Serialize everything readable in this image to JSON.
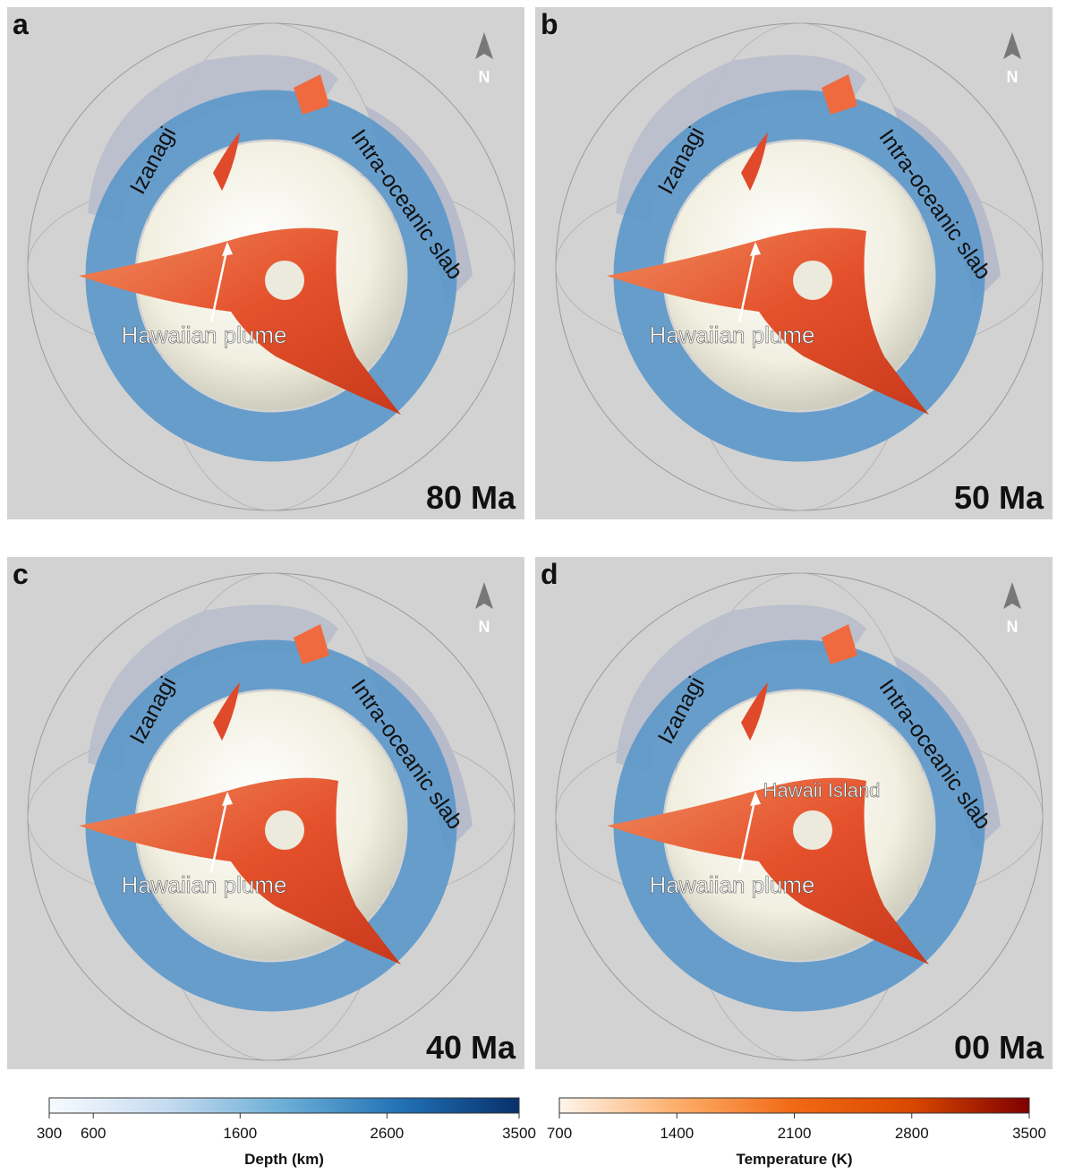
{
  "panels": [
    {
      "label": "a",
      "north": "N",
      "age": "80 Ma",
      "annotations": {
        "izanagi": "Izanagi",
        "slab": "Intra-oceanic slab",
        "plume": "Hawaiian plume"
      }
    },
    {
      "label": "b",
      "north": "N",
      "age": "50 Ma",
      "annotations": {
        "izanagi": "Izanagi",
        "slab": "Intra-oceanic slab",
        "plume": "Hawaiian plume"
      }
    },
    {
      "label": "c",
      "north": "N",
      "age": "40 Ma",
      "annotations": {
        "izanagi": "Izanagi",
        "slab": "Intra-oceanic slab",
        "plume": "Hawaiian plume"
      }
    },
    {
      "label": "d",
      "north": "N",
      "age": "00 Ma",
      "annotations": {
        "izanagi": "Izanagi",
        "slab": "Intra-oceanic slab",
        "plume": "Hawaiian plume",
        "island": "Hawaii Island"
      }
    }
  ],
  "colorbars": [
    {
      "title": "Depth (km)",
      "range": [
        300,
        3500
      ],
      "ticks": [
        300,
        600,
        1600,
        2600,
        3500
      ],
      "colors": [
        "#f7fbff",
        "#c6dbef",
        "#6baed6",
        "#2171b5",
        "#08306b"
      ]
    },
    {
      "title": "Temperature (K)",
      "range": [
        700,
        3500
      ],
      "ticks": [
        700,
        1400,
        2100,
        2800,
        3500
      ],
      "colors": [
        "#fff5eb",
        "#fdae6b",
        "#f16913",
        "#d94801",
        "#7f0000"
      ]
    }
  ]
}
